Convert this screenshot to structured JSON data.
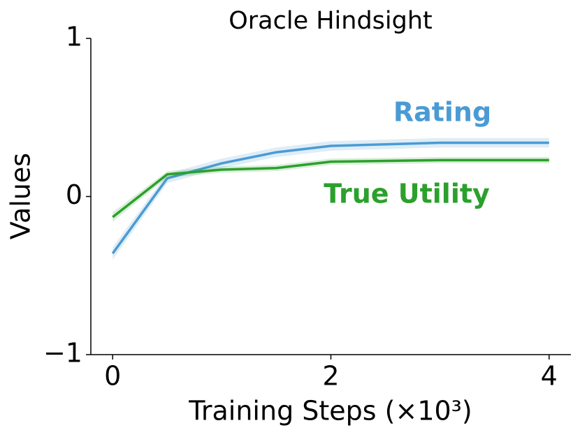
{
  "chart_data": {
    "type": "line",
    "title": "Oracle Hindsight",
    "x_label": "Training Steps (×10³)",
    "y_label": "Values",
    "x": [
      0,
      0.5,
      1,
      1.5,
      2,
      3,
      4
    ],
    "series": [
      {
        "name": "Rating",
        "color": "#4a9bd4",
        "values": [
          -0.36,
          0.115,
          0.21,
          0.28,
          0.32,
          0.34,
          0.34
        ],
        "error": [
          0.04,
          0.03,
          0.03,
          0.03,
          0.03,
          0.03,
          0.03
        ]
      },
      {
        "name": "True Utility",
        "color": "#2ca02c",
        "values": [
          -0.13,
          0.14,
          0.17,
          0.18,
          0.22,
          0.23,
          0.23
        ],
        "error": [
          0.03,
          0.02,
          0.02,
          0.02,
          0.02,
          0.02,
          0.02
        ]
      }
    ],
    "xlim": [
      -0.2,
      4.2
    ],
    "ylim": [
      -1,
      1
    ],
    "xticks": [
      0,
      2,
      4
    ],
    "yticks": [
      {
        "value": -1,
        "label": "−1"
      },
      0,
      1
    ]
  }
}
